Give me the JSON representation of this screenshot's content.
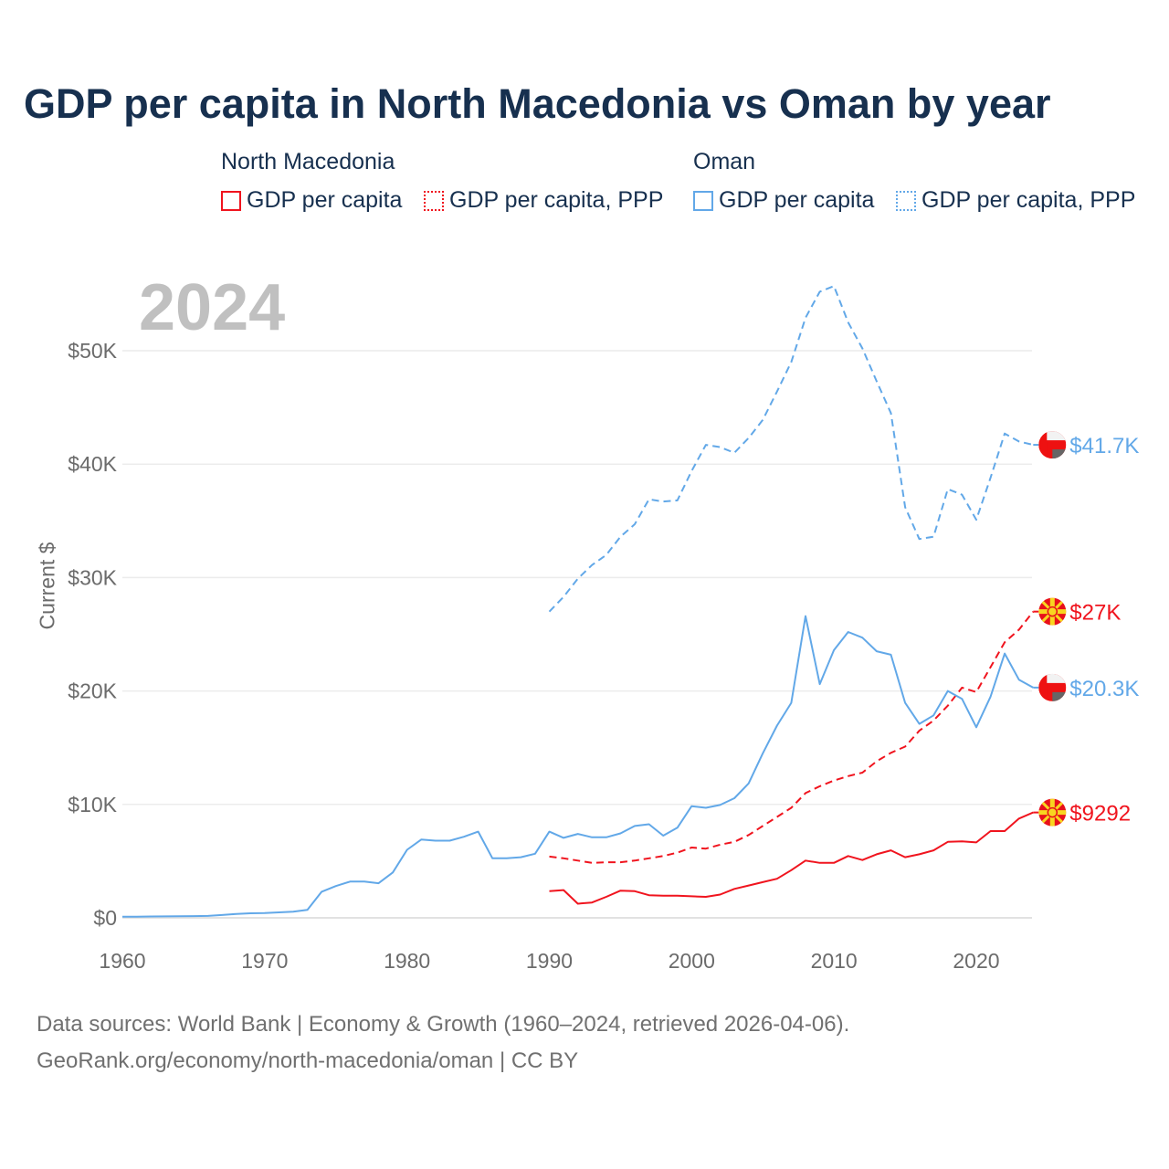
{
  "title": "GDP per capita in North Macedonia vs Oman by year",
  "legend": {
    "groups": [
      {
        "name": "North Macedonia",
        "items": [
          "GDP per capita",
          "GDP per capita, PPP"
        ]
      },
      {
        "name": "Oman",
        "items": [
          "GDP per capita",
          "GDP per capita, PPP"
        ]
      }
    ]
  },
  "year_label": "2024",
  "footer": {
    "line1": "Data sources: World Bank | Economy & Growth (1960–2024, retrieved 2026-04-06).",
    "line2": "GeoRank.org/economy/north-macedonia/oman | CC BY"
  },
  "colors": {
    "north_macedonia": "#f0141e",
    "oman": "#62a8e8",
    "title": "#17304f"
  },
  "chart_data": {
    "type": "line",
    "title": "GDP per capita in North Macedonia vs Oman by year",
    "xlabel": "",
    "ylabel": "Current $",
    "xlim": [
      1960,
      2024
    ],
    "ylim": [
      0,
      57000
    ],
    "x_ticks": [
      1960,
      1970,
      1980,
      1990,
      2000,
      2010,
      2020
    ],
    "x_tick_labels": [
      "1960",
      "1970",
      "1980",
      "1990",
      "2000",
      "2010",
      "2020"
    ],
    "y_ticks": [
      0,
      10000,
      20000,
      30000,
      40000,
      50000
    ],
    "y_tick_labels": [
      "$0",
      "$10K",
      "$20K",
      "$30K",
      "$40K",
      "$50K"
    ],
    "grid": true,
    "legend_position": "top",
    "series": [
      {
        "name": "Oman GDP per capita, PPP",
        "country": "oman",
        "dashed": true,
        "start": 1990,
        "end_label": "$41.7K",
        "values": [
          27.0,
          28.3,
          29.9,
          31.1,
          32.0,
          33.6,
          34.7,
          36.9,
          36.7,
          36.8,
          39.4,
          41.7,
          41.5,
          41.0,
          42.3,
          43.9,
          46.4,
          49.0,
          52.9,
          55.2,
          55.7,
          52.5,
          50.2,
          47.3,
          44.5,
          36.2,
          33.4,
          33.6,
          37.8,
          37.3,
          35.1,
          38.8,
          42.7,
          42.0,
          41.7
        ]
      },
      {
        "name": "North Macedonia GDP per capita, PPP",
        "country": "north_macedonia",
        "dashed": true,
        "start": 1990,
        "end_label": "$27K",
        "values": [
          5.4,
          5.25,
          5.05,
          4.85,
          4.9,
          4.9,
          5.05,
          5.25,
          5.45,
          5.75,
          6.2,
          6.1,
          6.45,
          6.7,
          7.3,
          8.1,
          8.9,
          9.7,
          11.0,
          11.6,
          12.1,
          12.5,
          12.8,
          13.8,
          14.55,
          15.1,
          16.5,
          17.4,
          18.7,
          20.3,
          19.9,
          22.1,
          24.3,
          25.4,
          27.0
        ]
      },
      {
        "name": "Oman GDP per capita",
        "country": "oman",
        "dashed": false,
        "start": 1960,
        "end_label": "$20.3K",
        "values": [
          0.1,
          0.1,
          0.12,
          0.13,
          0.14,
          0.15,
          0.17,
          0.25,
          0.35,
          0.4,
          0.42,
          0.48,
          0.55,
          0.7,
          2.3,
          2.8,
          3.2,
          3.2,
          3.05,
          4.0,
          6.0,
          6.9,
          6.8,
          6.8,
          7.15,
          7.6,
          5.25,
          5.25,
          5.35,
          5.65,
          7.6,
          7.05,
          7.4,
          7.1,
          7.1,
          7.45,
          8.1,
          8.25,
          7.25,
          7.95,
          9.85,
          9.7,
          9.95,
          10.55,
          11.85,
          14.5,
          16.95,
          18.95,
          26.6,
          20.6,
          23.6,
          25.2,
          24.7,
          23.5,
          23.2,
          18.95,
          17.1,
          17.85,
          20.0,
          19.3,
          16.8,
          19.5,
          23.3,
          21.0,
          20.3
        ]
      },
      {
        "name": "North Macedonia GDP per capita",
        "country": "north_macedonia",
        "dashed": false,
        "start": 1990,
        "end_label": "$9292",
        "values": [
          2.35,
          2.45,
          1.25,
          1.35,
          1.85,
          2.4,
          2.35,
          2.0,
          1.95,
          1.95,
          1.9,
          1.85,
          2.05,
          2.55,
          2.85,
          3.15,
          3.45,
          4.2,
          5.05,
          4.85,
          4.85,
          5.45,
          5.1,
          5.6,
          5.95,
          5.35,
          5.6,
          5.95,
          6.7,
          6.75,
          6.65,
          7.65,
          7.65,
          8.75,
          9.29
        ]
      }
    ],
    "value_unit": "thousand USD"
  }
}
